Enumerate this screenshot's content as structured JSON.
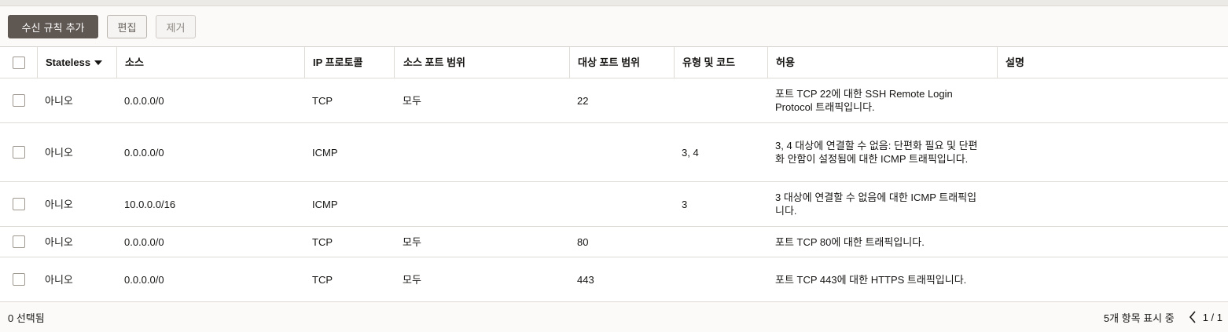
{
  "toolbar": {
    "add_label": "수신 규칙 추가",
    "edit_label": "편집",
    "remove_label": "제거"
  },
  "table": {
    "columns": [
      "Stateless",
      "소스",
      "IP 프로토콜",
      "소스 포트 범위",
      "대상 포트 범위",
      "유형 및 코드",
      "허용",
      "설명"
    ],
    "rows": [
      {
        "stateless": "아니오",
        "source": "0.0.0.0/0",
        "protocol": "TCP",
        "src_ports": "모두",
        "dst_ports": "22",
        "type_code": "",
        "allow": "포트 TCP 22에 대한 SSH Remote Login Protocol 트래픽입니다.",
        "desc": ""
      },
      {
        "stateless": "아니오",
        "source": "0.0.0.0/0",
        "protocol": "ICMP",
        "src_ports": "",
        "dst_ports": "",
        "type_code": "3, 4",
        "allow": "3, 4 대상에 연결할 수 없음: 단편화 필요 및 단편화 안함이 설정됨에 대한 ICMP 트래픽입니다.",
        "desc": ""
      },
      {
        "stateless": "아니오",
        "source": "10.0.0.0/16",
        "protocol": "ICMP",
        "src_ports": "",
        "dst_ports": "",
        "type_code": "3",
        "allow": "3 대상에 연결할 수 없음에 대한 ICMP 트래픽입니다.",
        "desc": ""
      },
      {
        "stateless": "아니오",
        "source": "0.0.0.0/0",
        "protocol": "TCP",
        "src_ports": "모두",
        "dst_ports": "80",
        "type_code": "",
        "allow": "포트 TCP 80에 대한 트래픽입니다.",
        "desc": ""
      },
      {
        "stateless": "아니오",
        "source": "0.0.0.0/0",
        "protocol": "TCP",
        "src_ports": "모두",
        "dst_ports": "443",
        "type_code": "",
        "allow": "포트 TCP 443에 대한 HTTPS 트래픽입니다.",
        "desc": ""
      }
    ]
  },
  "footer": {
    "selected": "0 선택됨",
    "showing": "5개 항목 표시 중",
    "page": "1 / 1"
  }
}
